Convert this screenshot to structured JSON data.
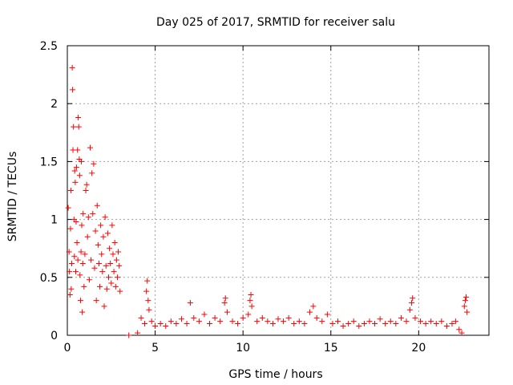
{
  "chart_data": {
    "type": "scatter",
    "title": "Day 025 of 2017, SRMTID for receiver salu",
    "xlabel": "GPS time / hours",
    "ylabel": "SRMTID / TECUs",
    "xlim": [
      0,
      24
    ],
    "ylim": [
      0,
      2.5
    ],
    "x_ticks": [
      0,
      5,
      10,
      15,
      20
    ],
    "x_tick_labels": [
      "0",
      "5",
      "10",
      "15",
      "20"
    ],
    "y_ticks": [
      0,
      0.5,
      1,
      1.5,
      2,
      2.5
    ],
    "y_tick_labels": [
      "0",
      "0.5",
      "1",
      "1.5",
      "2",
      "2.5"
    ],
    "grid": true,
    "marker": "+",
    "series_color": "#ff0000",
    "series": [
      {
        "name": "SRMTID",
        "points": [
          [
            0.05,
            1.1
          ],
          [
            0.1,
            0.72
          ],
          [
            0.12,
            0.55
          ],
          [
            0.15,
            0.35
          ],
          [
            0.18,
            0.92
          ],
          [
            0.2,
            1.25
          ],
          [
            0.22,
            0.4
          ],
          [
            0.25,
            0.62
          ],
          [
            0.28,
            2.31
          ],
          [
            0.3,
            2.12
          ],
          [
            0.32,
            1.6
          ],
          [
            0.35,
            1.8
          ],
          [
            0.38,
            1.0
          ],
          [
            0.4,
            0.68
          ],
          [
            0.42,
            1.42
          ],
          [
            0.45,
            1.32
          ],
          [
            0.48,
            0.55
          ],
          [
            0.5,
            0.98
          ],
          [
            0.52,
            1.45
          ],
          [
            0.55,
            0.8
          ],
          [
            0.58,
            1.6
          ],
          [
            0.6,
            0.65
          ],
          [
            0.62,
            1.88
          ],
          [
            0.65,
            1.8
          ],
          [
            0.68,
            1.52
          ],
          [
            0.7,
            1.38
          ],
          [
            0.72,
            0.52
          ],
          [
            0.75,
            0.3
          ],
          [
            0.78,
            0.72
          ],
          [
            0.8,
            1.5
          ],
          [
            0.82,
            0.95
          ],
          [
            0.85,
            0.2
          ],
          [
            0.88,
            0.62
          ],
          [
            0.9,
            1.05
          ],
          [
            0.95,
            0.42
          ],
          [
            1.0,
            0.7
          ],
          [
            1.05,
            1.25
          ],
          [
            1.1,
            1.3
          ],
          [
            1.15,
            0.85
          ],
          [
            1.2,
            1.02
          ],
          [
            1.25,
            0.48
          ],
          [
            1.3,
            1.62
          ],
          [
            1.35,
            0.65
          ],
          [
            1.4,
            1.4
          ],
          [
            1.45,
            1.05
          ],
          [
            1.5,
            1.48
          ],
          [
            1.55,
            0.58
          ],
          [
            1.6,
            0.9
          ],
          [
            1.65,
            0.3
          ],
          [
            1.7,
            1.12
          ],
          [
            1.75,
            0.78
          ],
          [
            1.8,
            0.62
          ],
          [
            1.85,
            0.42
          ],
          [
            1.9,
            0.95
          ],
          [
            1.95,
            0.7
          ],
          [
            2.0,
            0.55
          ],
          [
            2.05,
            0.85
          ],
          [
            2.1,
            0.25
          ],
          [
            2.15,
            1.02
          ],
          [
            2.2,
            0.6
          ],
          [
            2.25,
            0.4
          ],
          [
            2.3,
            0.88
          ],
          [
            2.35,
            0.5
          ],
          [
            2.4,
            0.75
          ],
          [
            2.45,
            0.62
          ],
          [
            2.5,
            0.45
          ],
          [
            2.55,
            0.95
          ],
          [
            2.6,
            0.7
          ],
          [
            2.65,
            0.55
          ],
          [
            2.7,
            0.8
          ],
          [
            2.75,
            0.42
          ],
          [
            2.8,
            0.65
          ],
          [
            2.85,
            0.5
          ],
          [
            2.9,
            0.72
          ],
          [
            2.95,
            0.6
          ],
          [
            3.0,
            0.38
          ],
          [
            3.5,
            0.0
          ],
          [
            4.0,
            0.02
          ],
          [
            4.2,
            0.15
          ],
          [
            4.4,
            0.1
          ],
          [
            4.5,
            0.38
          ],
          [
            4.55,
            0.47
          ],
          [
            4.6,
            0.3
          ],
          [
            4.65,
            0.22
          ],
          [
            4.8,
            0.12
          ],
          [
            5.0,
            0.08
          ],
          [
            5.3,
            0.1
          ],
          [
            5.6,
            0.08
          ],
          [
            5.9,
            0.12
          ],
          [
            6.2,
            0.1
          ],
          [
            6.5,
            0.14
          ],
          [
            6.8,
            0.1
          ],
          [
            7.0,
            0.28
          ],
          [
            7.2,
            0.15
          ],
          [
            7.5,
            0.12
          ],
          [
            7.8,
            0.18
          ],
          [
            8.1,
            0.1
          ],
          [
            8.4,
            0.15
          ],
          [
            8.7,
            0.12
          ],
          [
            8.95,
            0.28
          ],
          [
            9.0,
            0.32
          ],
          [
            9.1,
            0.2
          ],
          [
            9.4,
            0.12
          ],
          [
            9.7,
            0.1
          ],
          [
            10.0,
            0.15
          ],
          [
            10.3,
            0.18
          ],
          [
            10.4,
            0.3
          ],
          [
            10.45,
            0.35
          ],
          [
            10.5,
            0.25
          ],
          [
            10.8,
            0.12
          ],
          [
            11.1,
            0.15
          ],
          [
            11.4,
            0.12
          ],
          [
            11.7,
            0.1
          ],
          [
            12.0,
            0.14
          ],
          [
            12.3,
            0.12
          ],
          [
            12.6,
            0.15
          ],
          [
            12.9,
            0.1
          ],
          [
            13.2,
            0.12
          ],
          [
            13.5,
            0.1
          ],
          [
            13.8,
            0.2
          ],
          [
            14.0,
            0.25
          ],
          [
            14.2,
            0.15
          ],
          [
            14.5,
            0.12
          ],
          [
            14.8,
            0.18
          ],
          [
            15.1,
            0.1
          ],
          [
            15.4,
            0.12
          ],
          [
            15.7,
            0.08
          ],
          [
            16.0,
            0.1
          ],
          [
            16.3,
            0.12
          ],
          [
            16.6,
            0.08
          ],
          [
            16.9,
            0.1
          ],
          [
            17.2,
            0.12
          ],
          [
            17.5,
            0.1
          ],
          [
            17.8,
            0.14
          ],
          [
            18.1,
            0.1
          ],
          [
            18.4,
            0.12
          ],
          [
            18.7,
            0.1
          ],
          [
            19.0,
            0.15
          ],
          [
            19.3,
            0.12
          ],
          [
            19.5,
            0.22
          ],
          [
            19.6,
            0.28
          ],
          [
            19.65,
            0.32
          ],
          [
            19.8,
            0.15
          ],
          [
            20.1,
            0.12
          ],
          [
            20.4,
            0.1
          ],
          [
            20.7,
            0.12
          ],
          [
            21.0,
            0.1
          ],
          [
            21.3,
            0.12
          ],
          [
            21.6,
            0.08
          ],
          [
            21.9,
            0.1
          ],
          [
            22.1,
            0.12
          ],
          [
            22.3,
            0.05
          ],
          [
            22.45,
            0.02
          ],
          [
            22.6,
            0.25
          ],
          [
            22.65,
            0.3
          ],
          [
            22.7,
            0.33
          ],
          [
            22.75,
            0.2
          ]
        ]
      }
    ]
  }
}
